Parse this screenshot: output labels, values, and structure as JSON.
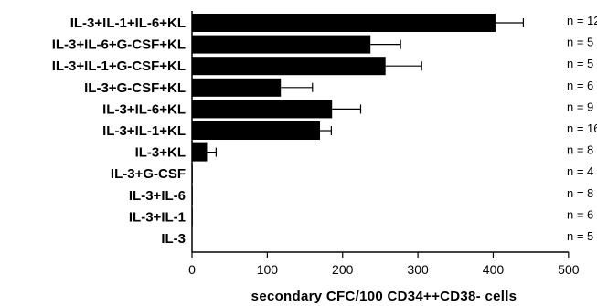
{
  "chart_data": {
    "type": "bar",
    "orientation": "horizontal",
    "categories": [
      "IL-3+IL-1+IL-6+KL",
      "IL-3+IL-6+G-CSF+KL",
      "IL-3+IL-1+G-CSF+KL",
      "IL-3+G-CSF+KL",
      "IL-3+IL-6+KL",
      "IL-3+IL-1+KL",
      "IL-3+KL",
      "IL-3+G-CSF",
      "IL-3+IL-6",
      "IL-3+IL-1",
      "IL-3"
    ],
    "values": [
      403,
      237,
      257,
      118,
      186,
      170,
      20,
      1,
      1,
      1,
      0
    ],
    "errors": [
      37,
      40,
      48,
      42,
      38,
      15,
      12,
      0,
      0,
      0,
      0
    ],
    "n_labels": [
      "n = 12",
      "n = 5",
      "n = 5",
      "n = 6",
      "n = 9",
      "n = 16",
      "n = 8",
      "n = 4",
      "n = 8",
      "n = 6",
      "n = 5"
    ],
    "xlabel": "secondary  CFC/100  CD34++CD38-  cells",
    "xlim": [
      0,
      500
    ],
    "xticks": [
      0,
      100,
      200,
      300,
      400,
      500
    ],
    "bar_color": "#000000",
    "grid": false
  }
}
